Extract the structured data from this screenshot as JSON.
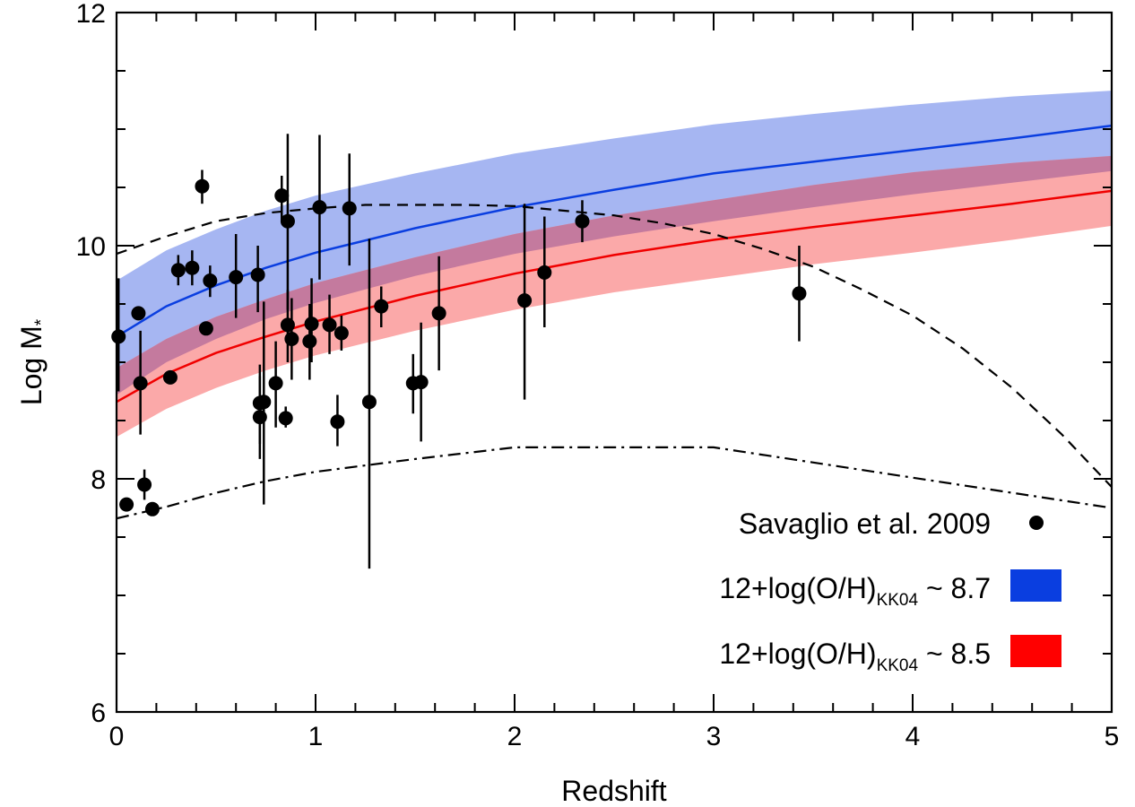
{
  "chart_data": {
    "type": "scatter",
    "title": "",
    "xlabel": "Redshift",
    "ylabel_main": "Log M",
    "ylabel_sub": "*",
    "xlim": [
      0,
      5
    ],
    "ylim": [
      6,
      12
    ],
    "x_ticks": [
      0,
      1,
      2,
      3,
      4,
      5
    ],
    "y_ticks": [
      6,
      8,
      10,
      12
    ],
    "x_tick_labels": [
      "0",
      "1",
      "2",
      "3",
      "4",
      "5"
    ],
    "y_tick_labels": [
      "6",
      "8",
      "10",
      "12"
    ],
    "x_minor_step": 0.2,
    "y_minor_step": 0.5,
    "grid": false,
    "legend_position": "bottom-right",
    "colors": {
      "blue_line": "#0a3ee0",
      "blue_band": "#a6b6f2",
      "red_line": "#f00000",
      "red_band": "#fba9a9",
      "overlap_band": "#c47a9e",
      "points": "#000000",
      "blue_legend": "#0a3ee0",
      "red_legend": "#ff0000"
    },
    "legend": [
      {
        "kind": "points",
        "label": "Savaglio et al. 2009"
      },
      {
        "kind": "blue-band",
        "label_main": "12+log(O/H)",
        "label_sub": "KK04",
        "label_tail": " ~ 8.7"
      },
      {
        "kind": "red-band",
        "label_main": "12+log(O/H)",
        "label_sub": "KK04",
        "label_tail": " ~ 8.5"
      }
    ],
    "points": [
      {
        "x": 0.01,
        "y": 9.22,
        "ylo": 8.75,
        "yhi": 9.72
      },
      {
        "x": 0.05,
        "y": 7.78,
        "ylo": 7.78,
        "yhi": 7.78
      },
      {
        "x": 0.11,
        "y": 9.42,
        "ylo": 9.42,
        "yhi": 9.42
      },
      {
        "x": 0.12,
        "y": 8.82,
        "ylo": 8.38,
        "yhi": 9.27
      },
      {
        "x": 0.14,
        "y": 7.95,
        "ylo": 7.82,
        "yhi": 8.08
      },
      {
        "x": 0.18,
        "y": 7.74,
        "ylo": 7.74,
        "yhi": 7.74
      },
      {
        "x": 0.27,
        "y": 8.87,
        "ylo": 8.87,
        "yhi": 8.87
      },
      {
        "x": 0.31,
        "y": 9.79,
        "ylo": 9.66,
        "yhi": 9.92
      },
      {
        "x": 0.38,
        "y": 9.81,
        "ylo": 9.66,
        "yhi": 9.96
      },
      {
        "x": 0.43,
        "y": 10.51,
        "ylo": 10.36,
        "yhi": 10.65
      },
      {
        "x": 0.45,
        "y": 9.29,
        "ylo": 9.29,
        "yhi": 9.29
      },
      {
        "x": 0.47,
        "y": 9.7,
        "ylo": 9.56,
        "yhi": 9.83
      },
      {
        "x": 0.6,
        "y": 9.73,
        "ylo": 9.38,
        "yhi": 10.1
      },
      {
        "x": 0.71,
        "y": 9.75,
        "ylo": 9.43,
        "yhi": 10.0
      },
      {
        "x": 0.72,
        "y": 8.65,
        "ylo": 8.3,
        "yhi": 8.98
      },
      {
        "x": 0.72,
        "y": 8.53,
        "ylo": 8.17,
        "yhi": 8.88
      },
      {
        "x": 0.74,
        "y": 8.66,
        "ylo": 7.78,
        "yhi": 9.52
      },
      {
        "x": 0.8,
        "y": 8.82,
        "ylo": 8.44,
        "yhi": 9.18
      },
      {
        "x": 0.83,
        "y": 10.43,
        "ylo": 10.22,
        "yhi": 10.6
      },
      {
        "x": 0.85,
        "y": 8.52,
        "ylo": 8.44,
        "yhi": 8.62
      },
      {
        "x": 0.86,
        "y": 10.21,
        "ylo": 9.45,
        "yhi": 10.96
      },
      {
        "x": 0.86,
        "y": 9.32,
        "ylo": 9.0,
        "yhi": 9.62
      },
      {
        "x": 0.88,
        "y": 9.2,
        "ylo": 8.85,
        "yhi": 9.55
      },
      {
        "x": 0.97,
        "y": 9.18,
        "ylo": 8.85,
        "yhi": 9.5
      },
      {
        "x": 0.98,
        "y": 9.33,
        "ylo": 9.0,
        "yhi": 9.72
      },
      {
        "x": 1.02,
        "y": 10.33,
        "ylo": 9.71,
        "yhi": 10.95
      },
      {
        "x": 1.07,
        "y": 9.32,
        "ylo": 9.07,
        "yhi": 9.58
      },
      {
        "x": 1.11,
        "y": 8.49,
        "ylo": 8.28,
        "yhi": 8.72
      },
      {
        "x": 1.13,
        "y": 9.25,
        "ylo": 9.1,
        "yhi": 9.4
      },
      {
        "x": 1.17,
        "y": 10.32,
        "ylo": 9.83,
        "yhi": 10.79
      },
      {
        "x": 1.27,
        "y": 8.66,
        "ylo": 7.23,
        "yhi": 10.06
      },
      {
        "x": 1.33,
        "y": 9.48,
        "ylo": 9.3,
        "yhi": 9.65
      },
      {
        "x": 1.49,
        "y": 8.82,
        "ylo": 8.56,
        "yhi": 9.07
      },
      {
        "x": 1.53,
        "y": 8.83,
        "ylo": 8.32,
        "yhi": 9.34
      },
      {
        "x": 1.62,
        "y": 9.42,
        "ylo": 8.93,
        "yhi": 9.91
      },
      {
        "x": 2.05,
        "y": 9.53,
        "ylo": 8.68,
        "yhi": 10.36
      },
      {
        "x": 2.15,
        "y": 9.77,
        "ylo": 9.3,
        "yhi": 10.25
      },
      {
        "x": 2.34,
        "y": 10.21,
        "ylo": 10.03,
        "yhi": 10.39
      },
      {
        "x": 3.43,
        "y": 9.59,
        "ylo": 9.18,
        "yhi": 10.0
      }
    ],
    "series": [
      {
        "kind": "blue-mean",
        "x": [
          0,
          0.25,
          0.5,
          0.75,
          1,
          1.5,
          2,
          2.5,
          3,
          3.5,
          4,
          4.5,
          5
        ],
        "y": [
          9.22,
          9.48,
          9.66,
          9.81,
          9.94,
          10.15,
          10.33,
          10.48,
          10.62,
          10.72,
          10.82,
          10.92,
          11.03
        ]
      },
      {
        "kind": "red-mean",
        "x": [
          0,
          0.25,
          0.5,
          0.75,
          1,
          1.5,
          2,
          2.5,
          3,
          3.5,
          4,
          4.5,
          5
        ],
        "y": [
          8.66,
          8.9,
          9.08,
          9.22,
          9.35,
          9.57,
          9.76,
          9.92,
          10.05,
          10.16,
          10.26,
          10.36,
          10.47
        ]
      },
      {
        "kind": "blue-band",
        "x": [
          0,
          0.25,
          0.5,
          0.75,
          1,
          1.5,
          2,
          2.5,
          3,
          3.5,
          4,
          4.5,
          5
        ],
        "ylo": [
          8.72,
          9.0,
          9.2,
          9.37,
          9.51,
          9.74,
          9.93,
          10.08,
          10.21,
          10.33,
          10.44,
          10.54,
          10.64
        ],
        "yhi": [
          9.7,
          9.96,
          10.14,
          10.3,
          10.43,
          10.62,
          10.79,
          10.92,
          11.04,
          11.13,
          11.21,
          11.28,
          11.33
        ]
      },
      {
        "kind": "red-band",
        "x": [
          0,
          0.25,
          0.5,
          0.75,
          1,
          1.5,
          2,
          2.5,
          3,
          3.5,
          4,
          4.5,
          5
        ],
        "ylo": [
          8.36,
          8.6,
          8.78,
          8.93,
          9.06,
          9.27,
          9.45,
          9.6,
          9.72,
          9.84,
          9.94,
          10.05,
          10.17
        ],
        "yhi": [
          8.95,
          9.2,
          9.39,
          9.54,
          9.68,
          9.9,
          10.1,
          10.26,
          10.39,
          10.52,
          10.63,
          10.71,
          10.77
        ]
      },
      {
        "kind": "dashed",
        "x": [
          0,
          0.25,
          0.5,
          0.75,
          1,
          1.25,
          1.5,
          1.75,
          2,
          2.25,
          2.5,
          2.75,
          3,
          3.25,
          3.5,
          3.75,
          4,
          4.25,
          4.5,
          4.75,
          5
        ],
        "y": [
          9.93,
          10.08,
          10.21,
          10.28,
          10.32,
          10.35,
          10.35,
          10.35,
          10.34,
          10.3,
          10.26,
          10.19,
          10.1,
          9.97,
          9.82,
          9.62,
          9.4,
          9.12,
          8.78,
          8.38,
          7.93
        ]
      },
      {
        "kind": "dashdot",
        "x": [
          0,
          0.25,
          0.5,
          0.75,
          1,
          1.5,
          2,
          3,
          4,
          5
        ],
        "y": [
          7.66,
          7.76,
          7.88,
          7.98,
          8.06,
          8.17,
          8.27,
          8.27,
          8.01,
          7.75
        ]
      }
    ]
  }
}
